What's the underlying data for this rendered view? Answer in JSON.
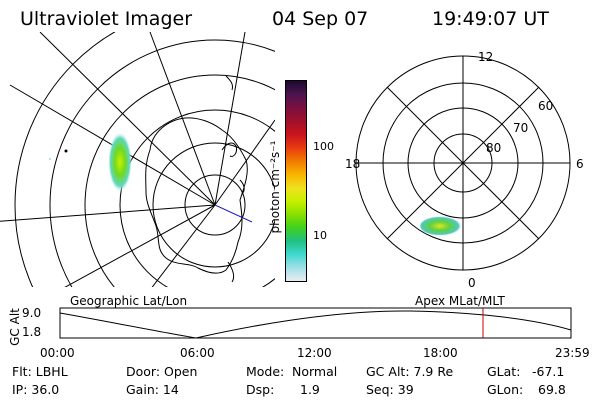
{
  "header": {
    "title": "Ultraviolet Imager",
    "date": "04 Sep 07",
    "time": "19:49:07 UT"
  },
  "colorbar": {
    "unit_label": "photon cm⁻²s⁻¹",
    "ticks": [
      "100",
      "10"
    ],
    "colors": [
      "#1a0a2e",
      "#4b1450",
      "#7a1040",
      "#a0102a",
      "#c81420",
      "#e83a10",
      "#f27a00",
      "#f8b400",
      "#f0e020",
      "#c8f000",
      "#88e000",
      "#40d020",
      "#20c080",
      "#40d8d0",
      "#a0e0e8",
      "#e8ecf0"
    ]
  },
  "geo_map": {
    "label": "Geographic Lat/Lon"
  },
  "polar_plot": {
    "label": "Apex MLat/MLT",
    "hour_labels": {
      "top": "12",
      "left": "18",
      "right": "6",
      "bottom": "0"
    },
    "lat_labels": [
      "60",
      "70",
      "80"
    ]
  },
  "altitude_plot": {
    "axis_label": "GC Alt",
    "y_ticks": [
      "9.0",
      "1.8"
    ],
    "x_ticks": [
      "00:00",
      "06:00",
      "12:00",
      "18:00",
      "23:59"
    ],
    "marker_color": "#cc0000"
  },
  "info": {
    "flt": "Flt: LBHL",
    "door": "Door: Open",
    "mode_label": "Mode:",
    "mode_value": "Normal",
    "gcalt": "GC Alt: 7.9 Re",
    "glat_label": "GLat:",
    "glat_value": "-67.1",
    "ip": "IP: 36.0",
    "gain": "Gain: 14",
    "dsp_label": "Dsp:",
    "dsp_value": "1.9",
    "seq": "Seq: 39",
    "glon_label": "GLon:",
    "glon_value": "69.8"
  }
}
